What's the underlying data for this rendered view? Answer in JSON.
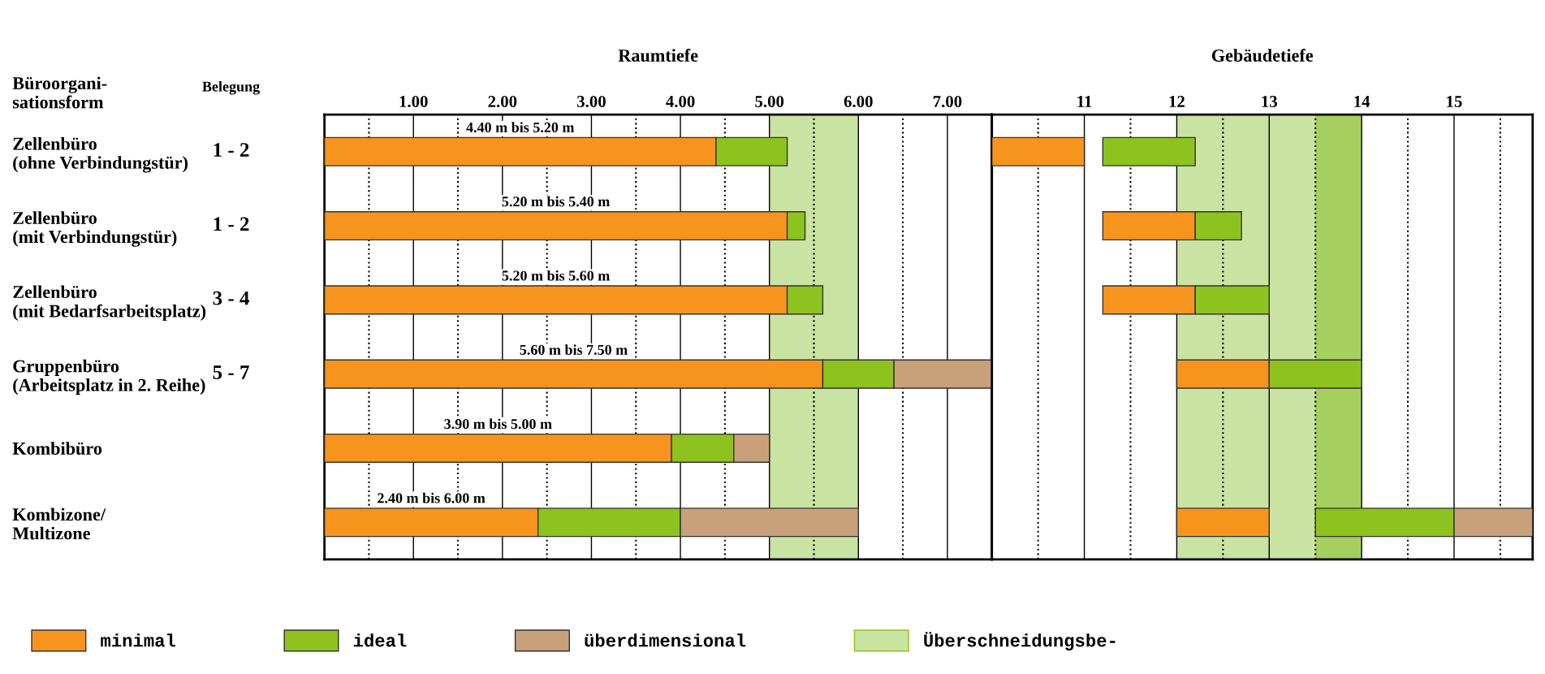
{
  "chart_data": [
    {
      "type": "bar",
      "orientation": "horizontal",
      "xlabel": "Raumtiefe",
      "ylabel": "Büroorgani-\nsationsform",
      "categories": [
        "Zellenbüro\n(ohne Verbindungstür)",
        "Zellenbüro\n(mit Verbindungstür)",
        "Zellenbüro\n(mit Bedarfsarbeitsplatz)",
        "Gruppenbüro\n(Arbeitsplatz in 2. Reihe)",
        "Kombibüro",
        "Kombizone/\nMultizone"
      ],
      "series": [
        {
          "name": "minimal",
          "color": "#f7941d",
          "base": [
            0,
            0,
            0,
            0,
            0,
            0
          ],
          "values": [
            4.4,
            5.2,
            5.2,
            5.6,
            3.9,
            2.4
          ],
          "value_labels": [
            "4.40 m bis 5.20 m",
            "5.20 m bis 5.40 m",
            "5.20 m bis 5.60 m",
            "5.60 m bis 7.50 m",
            "3.90 m bis 5.00 m",
            "2.40 m bis 6.00 m"
          ]
        },
        {
          "name": "ideal",
          "color": "#8dc21f",
          "base": [
            4.4,
            5.2,
            5.2,
            5.6,
            3.9,
            2.4
          ],
          "values": [
            0.8,
            0.2,
            0.4,
            0.8,
            0.7,
            1.6
          ]
        },
        {
          "name": "überdimensional",
          "color": "#c8a07a",
          "base": [
            null,
            null,
            null,
            6.4,
            4.6,
            4.0
          ],
          "values": [
            null,
            null,
            null,
            1.1,
            0.4,
            2.0
          ]
        }
      ],
      "xlim": [
        0,
        7.5
      ],
      "xticks": [
        {
          "value": 0.5,
          "label": null
        },
        {
          "value": 1,
          "label": "1.00"
        },
        {
          "value": 1.5,
          "label": null
        },
        {
          "value": 2,
          "label": "2.00"
        },
        {
          "value": 2.5,
          "label": null
        },
        {
          "value": 3,
          "label": "3.00"
        },
        {
          "value": 3.5,
          "label": null
        },
        {
          "value": 4,
          "label": "4.00"
        },
        {
          "value": 4.5,
          "label": null
        },
        {
          "value": 5,
          "label": "5.00"
        },
        {
          "value": 5.5,
          "label": null
        },
        {
          "value": 6,
          "label": "6.00"
        },
        {
          "value": 6.5,
          "label": null
        },
        {
          "value": 7,
          "label": "7.00"
        }
      ],
      "bands": [
        {
          "axis": "x",
          "from": 5,
          "to": 6,
          "label": "Überschneidungsbe-",
          "color": "#c9e3a3"
        }
      ],
      "annotations": [
        "Belegung",
        "1 - 2",
        "1 - 2",
        "3 - 4",
        "5 - 7"
      ],
      "grid": "x",
      "legend": "bottom"
    },
    {
      "type": "bar",
      "orientation": "horizontal",
      "xlabel": "Gebäudetiefe",
      "categories": [
        null,
        null,
        null,
        null,
        null,
        null
      ],
      "series": [
        {
          "color": "#f7941d",
          "base": [
            10,
            11.2,
            11.2,
            12,
            null,
            12
          ],
          "values": [
            1,
            1,
            1,
            1,
            null,
            1
          ]
        },
        {
          "color": "#8dc21f",
          "base": [
            11.2,
            12.2,
            12.2,
            13,
            null,
            13.5
          ],
          "values": [
            1,
            0.5,
            0.8,
            1,
            null,
            1.5
          ]
        },
        {
          "color": "#c8a07a",
          "base": [
            null,
            null,
            null,
            null,
            null,
            15
          ],
          "values": [
            null,
            null,
            null,
            null,
            null,
            0.85
          ]
        }
      ],
      "xlim": [
        10,
        15.85
      ],
      "xticks": [
        {
          "value": 10.5,
          "label": null
        },
        11,
        {
          "value": 11.5,
          "label": null
        },
        12,
        {
          "value": 12.5,
          "label": null
        },
        13,
        {
          "value": 13.5,
          "label": null
        },
        14,
        {
          "value": 14.5,
          "label": null
        },
        15,
        {
          "value": 15.5,
          "label": null
        }
      ],
      "bands": [
        {
          "axis": "x",
          "from": 12,
          "to": 14,
          "color": "#c9e3a3"
        },
        {
          "axis": "x",
          "from": 13.5,
          "to": 14,
          "color": "#a5cf5e"
        }
      ],
      "grid": "x"
    }
  ]
}
